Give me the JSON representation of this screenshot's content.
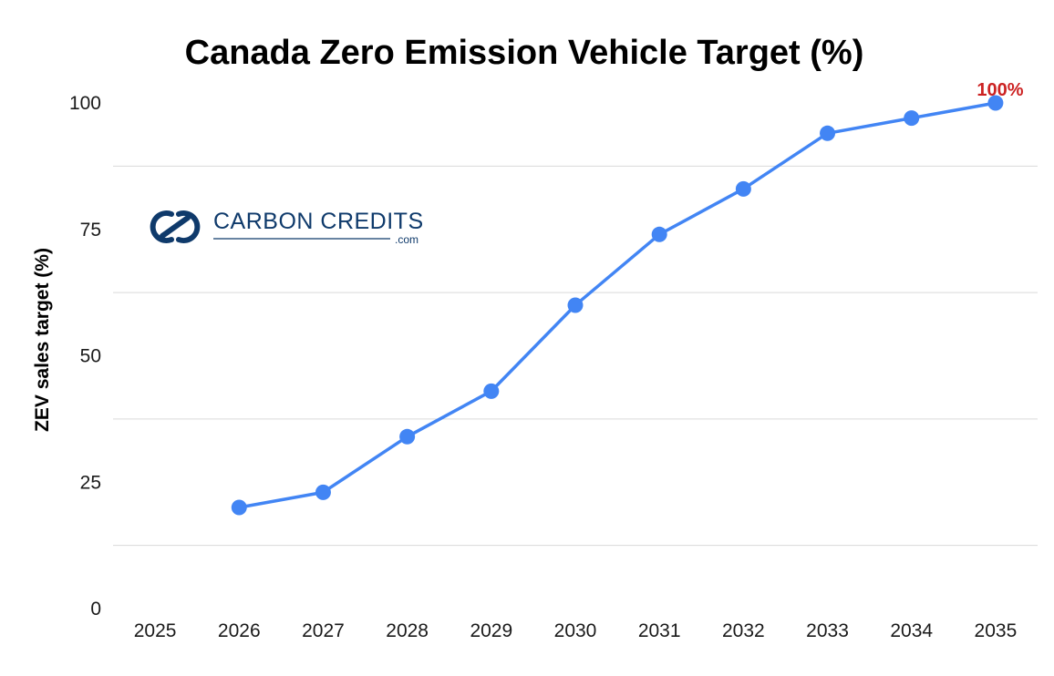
{
  "colors": {
    "line": "#4285f4",
    "grid": "#d9d9d9",
    "annotation": "#cc2222",
    "logo": "#0f3a6b"
  },
  "logo": {
    "icon": "interlinked-rings-icon",
    "name": "CARBON CREDITS",
    "suffix": ".com"
  },
  "chart_data": {
    "type": "line",
    "title": "Canada Zero Emission Vehicle Target (%)",
    "xlabel": "",
    "ylabel": "ZEV sales target (%)",
    "categories": [
      "2025",
      "2026",
      "2027",
      "2028",
      "2029",
      "2030",
      "2031",
      "2032",
      "2033",
      "2034",
      "2035"
    ],
    "series": [
      {
        "values": [
          null,
          20,
          23,
          34,
          43,
          60,
          74,
          83,
          94,
          97,
          100
        ]
      }
    ],
    "ylim": [
      0,
      100
    ],
    "yticks": [
      0,
      25,
      50,
      75,
      100
    ],
    "grid": true,
    "annotations": [
      {
        "category": "2035",
        "value": 100,
        "text": "100%"
      }
    ]
  }
}
